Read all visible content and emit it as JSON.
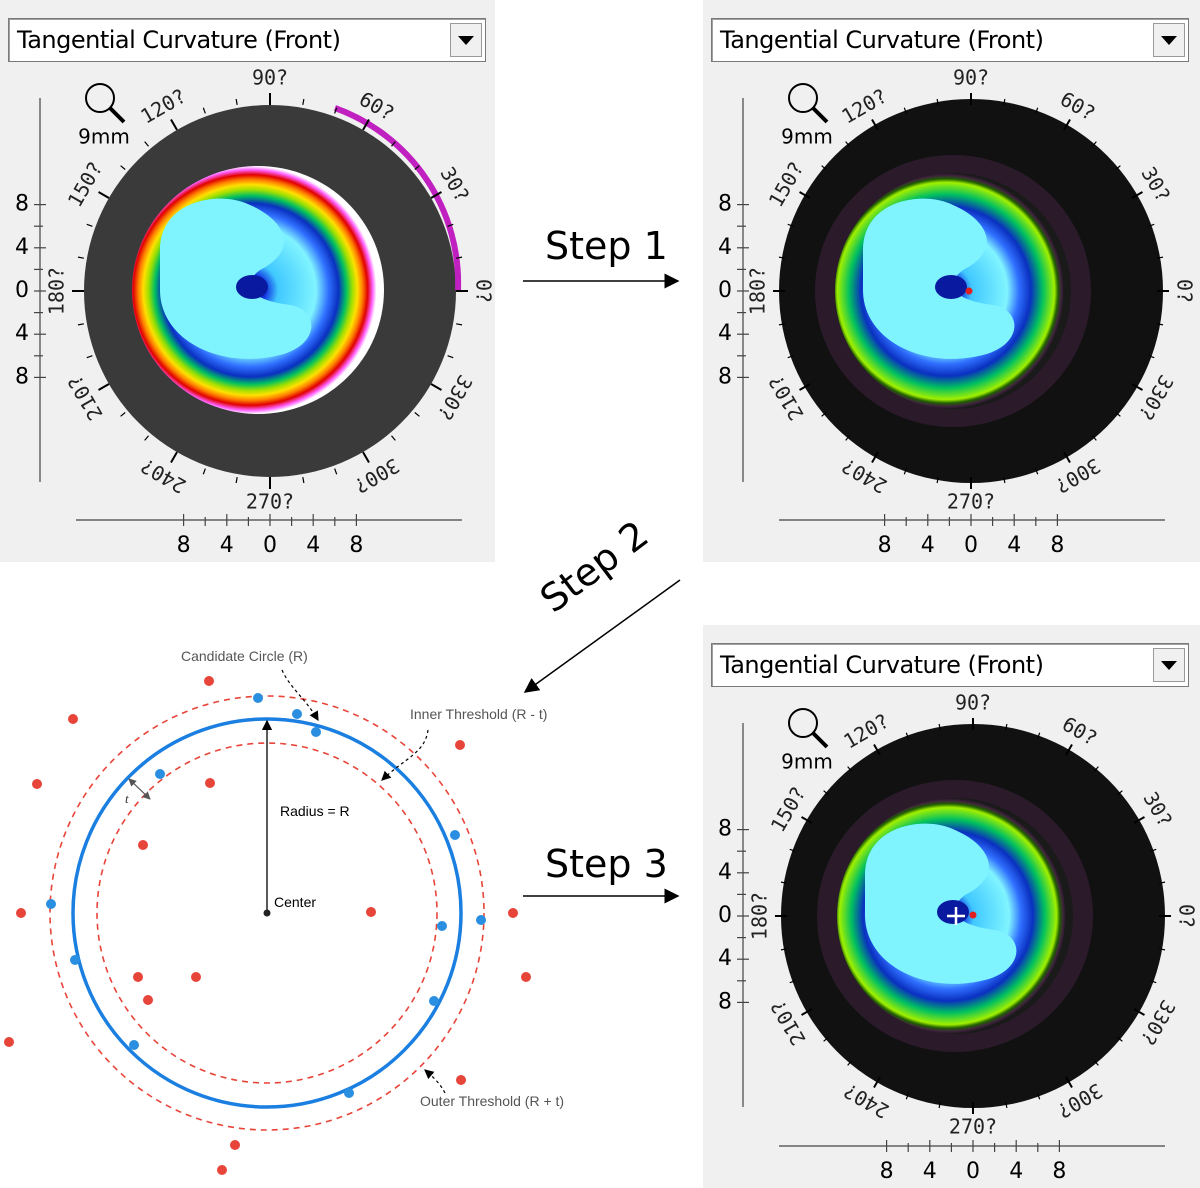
{
  "panels": [
    {
      "dropdown": "Tangential Curvature (Front)",
      "magnifier_label": "9mm",
      "angle_labels": [
        "90?",
        "60?",
        "30?",
        "0?",
        "330?",
        "300?",
        "270?",
        "240?",
        "210?",
        "180?",
        "150?",
        "120?"
      ],
      "y_ticks": [
        "8",
        "4",
        "0",
        "4",
        "8"
      ],
      "x_ticks": [
        "8",
        "4",
        "0",
        "4",
        "8"
      ]
    },
    {
      "dropdown": "Tangential Curvature (Front)",
      "magnifier_label": "9mm",
      "angle_labels": [
        "90?",
        "60?",
        "30?",
        "0?",
        "330?",
        "300?",
        "270?",
        "240?",
        "210?",
        "180?",
        "150?",
        "120?"
      ],
      "y_ticks": [
        "8",
        "4",
        "0",
        "4",
        "8"
      ],
      "x_ticks": [
        "8",
        "4",
        "0",
        "4",
        "8"
      ]
    },
    {
      "dropdown": "Tangential Curvature (Front)",
      "magnifier_label": "9mm",
      "angle_labels": [
        "90?",
        "60?",
        "30?",
        "0?",
        "330?",
        "300?",
        "270?",
        "240?",
        "210?",
        "180?",
        "150?",
        "120?"
      ],
      "y_ticks": [
        "8",
        "4",
        "0",
        "4",
        "8"
      ],
      "x_ticks": [
        "8",
        "4",
        "0",
        "4",
        "8"
      ]
    }
  ],
  "steps": {
    "step1": "Step 1",
    "step2": "Step 2",
    "step3": "Step 3"
  },
  "diagram": {
    "candidate_circle": "Candidate Circle (R)",
    "inner_threshold": "Inner Threshold (R - t)",
    "outer_threshold": "Outer Threshold (R + t)",
    "radius": "Radius = R",
    "center": "Center",
    "t_label": "t"
  },
  "colors": {
    "inlier": "#2a8fe0",
    "outlier": "#e8453a",
    "candidate_circle": "#1a7fe0",
    "threshold": "#e8453a"
  }
}
